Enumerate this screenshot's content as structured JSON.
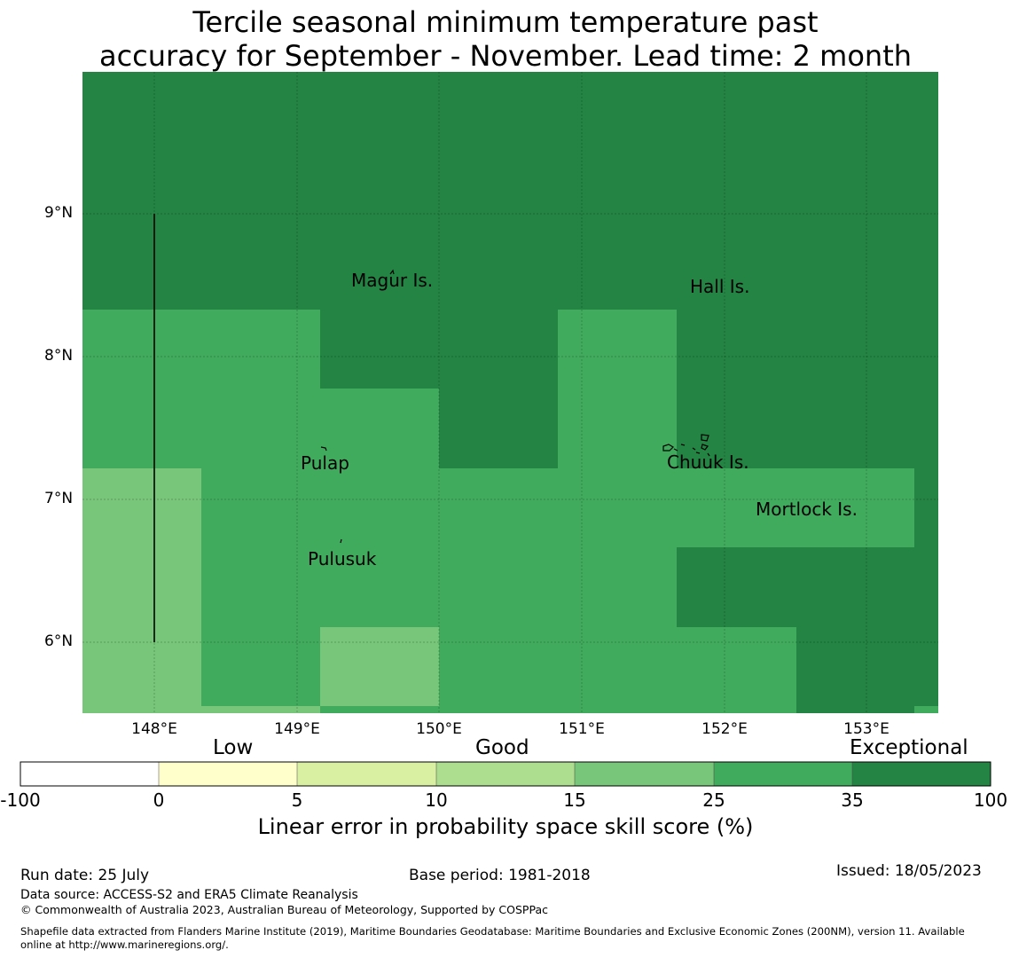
{
  "title": {
    "line1": "Tercile seasonal minimum temperature past",
    "line2": "accuracy for September - November. Lead time: 2 month"
  },
  "map": {
    "lat_labels": [
      "9°N",
      "8°N",
      "7°N",
      "6°N"
    ],
    "lon_labels": [
      "148°E",
      "149°E",
      "150°E",
      "151°E",
      "152°E",
      "153°E"
    ],
    "places": [
      "Magur Is.",
      "Hall Is.",
      "Pulap",
      "Chuuk Is.",
      "Mortlock Is.",
      "Pulusuk"
    ],
    "colors": {
      "exceptional": "#238443",
      "very_good": "#41ab5d",
      "good": "#78c679"
    }
  },
  "legend": {
    "categories": [
      "Low",
      "Good",
      "Exceptional"
    ],
    "ticks": [
      "-100",
      "0",
      "5",
      "10",
      "15",
      "25",
      "35",
      "100"
    ],
    "colors": [
      "#ffffff",
      "#ffffcc",
      "#d9f0a3",
      "#addd8e",
      "#78c679",
      "#41ab5d",
      "#238443"
    ],
    "title": "Linear error in probability space skill score (%)"
  },
  "footer": {
    "run_date": "Run date: 25 July",
    "base_period": "Base period: 1981-2018",
    "issued": "Issued: 18/05/2023",
    "data_source": "Data source: ACCESS-S2 and ERA5 Climate Reanalysis",
    "copyright": "© Commonwealth of Australia 2023, Australian Bureau of Meteorology, Supported by COSPPac",
    "shapefile": "Shapefile data extracted from Flanders Marine Institute (2019), Maritime Boundaries Geodatabase: Maritime Boundaries and Exclusive Economic Zones (200NM), version 11. Available",
    "shapefile2": "online at http://www.marineregions.org/."
  }
}
